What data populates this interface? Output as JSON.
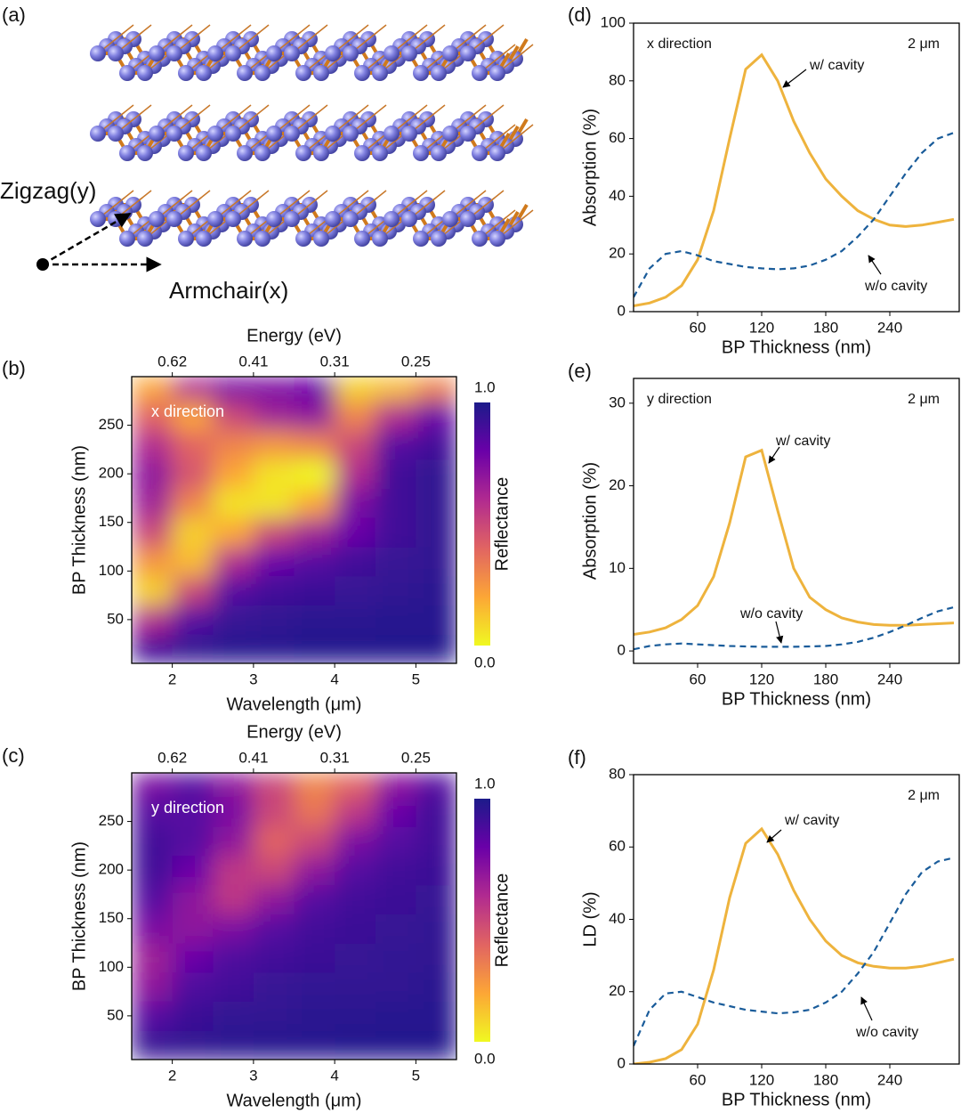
{
  "structure": {
    "panel": "(a)",
    "labels": [
      "Zigzag(y)",
      "Armchair(x)"
    ]
  },
  "chart_data": [
    {
      "type": "heatmap",
      "panel": "(b)",
      "xlabel": "Wavelength (μm)",
      "x2label": "Energy (eV)",
      "ylabel": "BP Thickness (nm)",
      "direction": "x direction",
      "colorbar_label": "Reflectance",
      "x": [
        1.75,
        2.25,
        2.75,
        3.25,
        3.75,
        4.25,
        4.75,
        5.25
      ],
      "y": [
        20,
        50,
        80,
        110,
        140,
        170,
        200,
        230,
        260,
        290
      ],
      "z": [
        [
          0.9,
          0.95,
          0.97,
          0.97,
          0.98,
          0.98,
          0.98,
          0.98
        ],
        [
          0.6,
          0.85,
          0.93,
          0.95,
          0.96,
          0.96,
          0.97,
          0.97
        ],
        [
          0.1,
          0.5,
          0.85,
          0.9,
          0.92,
          0.93,
          0.95,
          0.96
        ],
        [
          0.25,
          0.15,
          0.6,
          0.8,
          0.85,
          0.9,
          0.93,
          0.95
        ],
        [
          0.5,
          0.1,
          0.2,
          0.5,
          0.65,
          0.8,
          0.9,
          0.95
        ],
        [
          0.65,
          0.3,
          0.05,
          0.05,
          0.2,
          0.75,
          0.9,
          0.95
        ],
        [
          0.7,
          0.45,
          0.2,
          0.05,
          0.0,
          0.6,
          0.9,
          0.95
        ],
        [
          0.6,
          0.4,
          0.3,
          0.25,
          0.3,
          0.5,
          0.85,
          0.9
        ],
        [
          0.4,
          0.2,
          0.5,
          0.65,
          0.7,
          0.3,
          0.6,
          0.8
        ],
        [
          0.2,
          0.6,
          0.75,
          0.75,
          0.8,
          0.1,
          0.15,
          0.3
        ]
      ],
      "xlim": [
        1.5,
        5.5
      ],
      "xticks": [
        2,
        3,
        4,
        5
      ],
      "x2ticks": [
        {
          "value": 2,
          "label": "0.62"
        },
        {
          "value": 3,
          "label": "0.41"
        },
        {
          "value": 4,
          "label": "0.31"
        },
        {
          "value": 5,
          "label": "0.25"
        }
      ],
      "ylim": [
        5,
        300
      ],
      "yticks": [
        50,
        100,
        150,
        200,
        250
      ],
      "zlim": [
        0,
        1
      ],
      "zticks": [
        {
          "value": 0,
          "label": "0.0"
        },
        {
          "value": 1,
          "label": "1.0"
        }
      ],
      "colorscale": [
        "#f0f921",
        "#fca636",
        "#e16462",
        "#b12a90",
        "#6a00a8",
        "#1c1b8a"
      ]
    },
    {
      "type": "heatmap",
      "panel": "(c)",
      "xlabel": "Wavelength (μm)",
      "x2label": "Energy (eV)",
      "ylabel": "BP Thickness (nm)",
      "direction": "y direction",
      "colorbar_label": "Reflectance",
      "x": [
        1.75,
        2.25,
        2.75,
        3.25,
        3.75,
        4.25,
        4.75,
        5.25
      ],
      "y": [
        20,
        50,
        80,
        110,
        140,
        170,
        200,
        230,
        260,
        290
      ],
      "z": [
        [
          0.93,
          0.95,
          0.96,
          0.97,
          0.97,
          0.98,
          0.98,
          0.98
        ],
        [
          0.85,
          0.92,
          0.94,
          0.95,
          0.96,
          0.96,
          0.97,
          0.97
        ],
        [
          0.7,
          0.87,
          0.9,
          0.93,
          0.94,
          0.95,
          0.95,
          0.96
        ],
        [
          0.65,
          0.8,
          0.87,
          0.9,
          0.92,
          0.93,
          0.94,
          0.95
        ],
        [
          0.75,
          0.7,
          0.75,
          0.85,
          0.9,
          0.92,
          0.93,
          0.94
        ],
        [
          0.85,
          0.7,
          0.55,
          0.7,
          0.85,
          0.9,
          0.92,
          0.93
        ],
        [
          0.9,
          0.8,
          0.55,
          0.5,
          0.7,
          0.85,
          0.9,
          0.92
        ],
        [
          0.9,
          0.85,
          0.7,
          0.4,
          0.5,
          0.75,
          0.85,
          0.9
        ],
        [
          0.85,
          0.85,
          0.75,
          0.5,
          0.35,
          0.55,
          0.8,
          0.9
        ],
        [
          0.75,
          0.85,
          0.7,
          0.5,
          0.3,
          0.4,
          0.7,
          0.85
        ]
      ],
      "xlim": [
        1.5,
        5.5
      ],
      "xticks": [
        2,
        3,
        4,
        5
      ],
      "x2ticks": [
        {
          "value": 2,
          "label": "0.62"
        },
        {
          "value": 3,
          "label": "0.41"
        },
        {
          "value": 4,
          "label": "0.31"
        },
        {
          "value": 5,
          "label": "0.25"
        }
      ],
      "ylim": [
        5,
        300
      ],
      "yticks": [
        50,
        100,
        150,
        200,
        250
      ],
      "zlim": [
        0,
        1
      ],
      "zticks": [
        {
          "value": 0,
          "label": "0.0"
        },
        {
          "value": 1,
          "label": "1.0"
        }
      ],
      "colorscale": [
        "#f0f921",
        "#fca636",
        "#e16462",
        "#b12a90",
        "#6a00a8",
        "#1c1b8a"
      ]
    },
    {
      "type": "line",
      "panel": "(d)",
      "xlabel": "BP Thickness (nm)",
      "ylabel": "Absorption (%)",
      "direction": "x direction",
      "note": "2 μm",
      "x": [
        0,
        15,
        30,
        45,
        60,
        75,
        90,
        105,
        120,
        135,
        150,
        165,
        180,
        195,
        210,
        225,
        240,
        255,
        270,
        285,
        300
      ],
      "series": [
        {
          "name": "w/ cavity",
          "color": "#eeb33d",
          "dashed": false,
          "values": [
            2,
            3,
            5,
            9,
            18,
            35,
            60,
            84,
            89,
            80,
            66,
            55,
            46,
            40,
            35,
            32,
            30,
            29.5,
            30,
            31,
            32
          ]
        },
        {
          "name": "w/o cavity",
          "color": "#1a5c9a",
          "dashed": true,
          "values": [
            5,
            15,
            20,
            21,
            19.5,
            17.5,
            16.5,
            15.5,
            15,
            14.7,
            15,
            16,
            18,
            21,
            26,
            32,
            40,
            48,
            55,
            60,
            62
          ]
        }
      ],
      "xlim": [
        0,
        305
      ],
      "xticks": [
        60,
        120,
        180,
        240
      ],
      "ylim": [
        0,
        100
      ],
      "yticks": [
        0,
        20,
        40,
        60,
        80,
        100
      ]
    },
    {
      "type": "line",
      "panel": "(e)",
      "xlabel": "BP Thickness (nm)",
      "ylabel": "Absorption (%)",
      "direction": "y direction",
      "note": "2 μm",
      "x": [
        0,
        15,
        30,
        45,
        60,
        75,
        90,
        105,
        120,
        135,
        150,
        165,
        180,
        195,
        210,
        225,
        240,
        255,
        270,
        285,
        300
      ],
      "series": [
        {
          "name": "w/ cavity",
          "color": "#eeb33d",
          "dashed": false,
          "values": [
            2,
            2.3,
            2.8,
            3.8,
            5.5,
            9,
            15.5,
            23.5,
            24.3,
            17,
            10,
            6.5,
            5,
            4,
            3.5,
            3.2,
            3.1,
            3.1,
            3.2,
            3.3,
            3.4
          ]
        },
        {
          "name": "w/o cavity",
          "color": "#1a5c9a",
          "dashed": true,
          "values": [
            0.2,
            0.6,
            0.8,
            0.9,
            0.8,
            0.7,
            0.6,
            0.55,
            0.5,
            0.5,
            0.5,
            0.55,
            0.6,
            0.8,
            1.1,
            1.6,
            2.3,
            3.1,
            4,
            4.8,
            5.3
          ]
        }
      ],
      "xlim": [
        0,
        305
      ],
      "xticks": [
        60,
        120,
        180,
        240
      ],
      "ylim": [
        -1.5,
        33
      ],
      "yticks": [
        0,
        10,
        20,
        30
      ]
    },
    {
      "type": "line",
      "panel": "(f)",
      "xlabel": "BP Thickness (nm)",
      "ylabel": "LD (%)",
      "note": "2 μm",
      "x": [
        0,
        15,
        30,
        45,
        60,
        75,
        90,
        105,
        120,
        135,
        150,
        165,
        180,
        195,
        210,
        225,
        240,
        255,
        270,
        285,
        300
      ],
      "series": [
        {
          "name": "w/ cavity",
          "color": "#eeb33d",
          "dashed": false,
          "values": [
            0,
            0.5,
            1.5,
            4,
            11,
            26,
            46,
            61,
            65,
            58,
            48,
            40,
            34,
            30,
            28,
            27,
            26.5,
            26.5,
            27,
            28,
            29
          ]
        },
        {
          "name": "w/o cavity",
          "color": "#1a5c9a",
          "dashed": true,
          "values": [
            5,
            15,
            19.5,
            20,
            18.5,
            17,
            16,
            15,
            14.5,
            14,
            14.3,
            15,
            17,
            20,
            25,
            31,
            39,
            47,
            53,
            56,
            57
          ]
        }
      ],
      "xlim": [
        0,
        305
      ],
      "xticks": [
        60,
        120,
        180,
        240
      ],
      "ylim": [
        0,
        80
      ],
      "yticks": [
        0,
        20,
        40,
        60,
        80
      ]
    }
  ]
}
